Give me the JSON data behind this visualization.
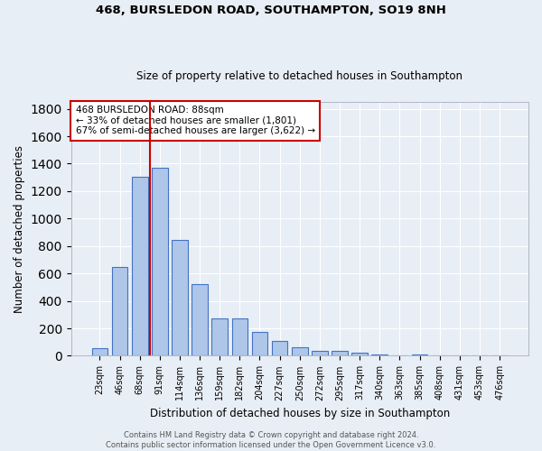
{
  "title1": "468, BURSLEDON ROAD, SOUTHAMPTON, SO19 8NH",
  "title2": "Size of property relative to detached houses in Southampton",
  "xlabel": "Distribution of detached houses by size in Southampton",
  "ylabel": "Number of detached properties",
  "categories": [
    "23sqm",
    "46sqm",
    "68sqm",
    "91sqm",
    "114sqm",
    "136sqm",
    "159sqm",
    "182sqm",
    "204sqm",
    "227sqm",
    "250sqm",
    "272sqm",
    "295sqm",
    "317sqm",
    "340sqm",
    "363sqm",
    "385sqm",
    "408sqm",
    "431sqm",
    "453sqm",
    "476sqm"
  ],
  "values": [
    55,
    645,
    1305,
    1370,
    845,
    525,
    275,
    275,
    175,
    105,
    65,
    35,
    35,
    20,
    8,
    0,
    12,
    0,
    0,
    0,
    0
  ],
  "bar_color": "#aec6e8",
  "bar_edge_color": "#4472c4",
  "bg_color": "#e8eef5",
  "grid_color": "#ffffff",
  "vline_color": "#cc0000",
  "annotation_line1": "468 BURSLEDON ROAD: 88sqm",
  "annotation_line2": "← 33% of detached houses are smaller (1,801)",
  "annotation_line3": "67% of semi-detached houses are larger (3,622) →",
  "annotation_box_color": "#ffffff",
  "annotation_box_edge": "#cc0000",
  "ylim": [
    0,
    1850
  ],
  "yticks": [
    0,
    200,
    400,
    600,
    800,
    1000,
    1200,
    1400,
    1600,
    1800
  ],
  "footer1": "Contains HM Land Registry data © Crown copyright and database right 2024.",
  "footer2": "Contains public sector information licensed under the Open Government Licence v3.0."
}
